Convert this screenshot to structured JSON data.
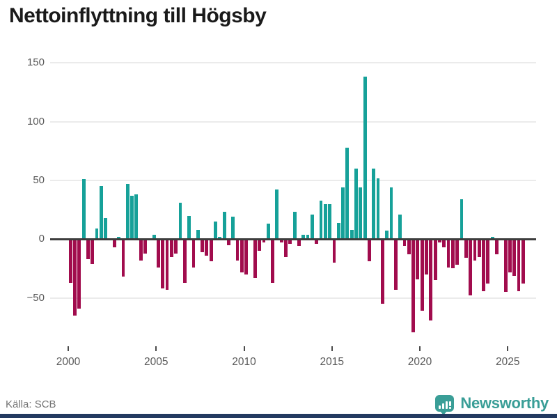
{
  "header": {
    "title": "Nettoinflyttning till Högsby"
  },
  "footer": {
    "source_label": "Källa: SCB",
    "brand_name": "Newsworthy"
  },
  "colors": {
    "positive": "#16a199",
    "negative": "#a10c4d",
    "axis_line": "#3d3d3d",
    "gridline": "#ebebeb",
    "tick_label": "#595959",
    "logo_teal": "#3a9e97",
    "bottom_strip_navy": "#233a60"
  },
  "chart_data": {
    "type": "bar",
    "title": "Nettoinflyttning till Högsby",
    "frequency": "quarterly",
    "start_period": "2000-Q1",
    "end_period": "2025-Q4",
    "xlabel": "",
    "ylabel": "",
    "ylim": [
      -90,
      155
    ],
    "grid": true,
    "yticks": [
      150,
      100,
      50,
      0,
      -50
    ],
    "ytick_labels": [
      "150",
      "100",
      "50",
      "0",
      "−50"
    ],
    "xticks": [
      2000,
      2005,
      2010,
      2015,
      2020,
      2025
    ],
    "values": [
      -37,
      -65,
      -59,
      51,
      -17,
      -21,
      9,
      45,
      18,
      0,
      -7,
      2,
      -32,
      47,
      37,
      38,
      -18,
      -12,
      0,
      4,
      -24,
      -42,
      -43,
      -15,
      -12,
      31,
      -37,
      20,
      -24,
      8,
      -11,
      -14,
      -19,
      15,
      2,
      23,
      -5,
      19,
      -18,
      -28,
      -30,
      0,
      -33,
      -10,
      -3,
      13,
      -37,
      42,
      -3,
      -15,
      -4,
      23,
      -6,
      4,
      4,
      21,
      -4,
      33,
      30,
      30,
      -20,
      14,
      44,
      78,
      8,
      60,
      44,
      138,
      -19,
      60,
      52,
      -55,
      7,
      44,
      -43,
      21,
      -6,
      -13,
      -79,
      -34,
      -61,
      -30,
      -69,
      -35,
      -3,
      -7,
      -24,
      -25,
      -22,
      34,
      -16,
      -48,
      -18,
      -15,
      -44,
      -38,
      2,
      -13,
      0,
      -45,
      -28,
      -31,
      -44,
      -38
    ],
    "positive_color": "#16a199",
    "negative_color": "#a10c4d",
    "legend": null
  }
}
